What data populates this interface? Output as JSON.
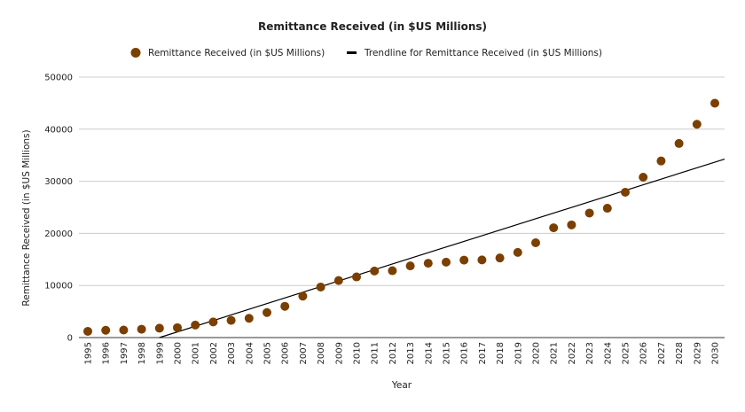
{
  "chart_data": {
    "type": "scatter",
    "title": "Remittance Received (in $US Millions)",
    "xlabel": "Year",
    "ylabel": "Remittance Received (in $US Millions)",
    "ylim": [
      0,
      50000
    ],
    "yticks": [
      "0",
      "10000",
      "20000",
      "30000",
      "40000",
      "50000"
    ],
    "ytick_values": [
      0,
      10000,
      20000,
      30000,
      40000,
      50000
    ],
    "grid": true,
    "legend_position": "top",
    "legend": [
      "Remittance Received (in $US Millions)",
      "Trendline for Remittance Received (in $US Millions)"
    ],
    "categories": [
      "1995",
      "1996",
      "1997",
      "1998",
      "1999",
      "2000",
      "2001",
      "2002",
      "2003",
      "2004",
      "2005",
      "2006",
      "2007",
      "2008",
      "2009",
      "2010",
      "2011",
      "2012",
      "2013",
      "2014",
      "2015",
      "2016",
      "2017",
      "2018",
      "2019",
      "2020",
      "2021",
      "2022",
      "2023",
      "2024",
      "2025",
      "2026",
      "2027",
      "2028",
      "2029",
      "2030"
    ],
    "series": [
      {
        "name": "Remittance Received (in $US Millions)",
        "kind": "points",
        "color": "#7b3f00",
        "values": [
          1200,
          1400,
          1450,
          1600,
          1800,
          1900,
          2400,
          3000,
          3300,
          3700,
          4800,
          6000,
          7950,
          9700,
          10950,
          11640,
          12780,
          12830,
          13750,
          14260,
          14480,
          14870,
          14900,
          15280,
          16350,
          18200,
          21070,
          21630,
          23900,
          24820,
          27890,
          30780,
          33900,
          37260,
          40940,
          44980
        ]
      },
      {
        "name": "Trendline for Remittance Received (in $US Millions)",
        "kind": "linear-trendline",
        "color": "#000000",
        "slope_per_year": 1086,
        "value_at_1995": -4340
      }
    ]
  }
}
